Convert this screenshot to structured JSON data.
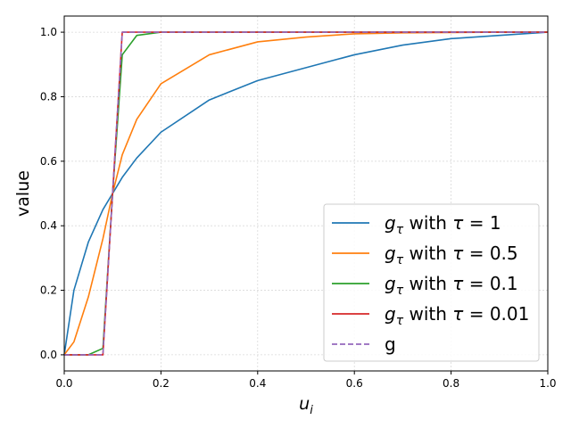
{
  "chart_data": {
    "type": "line",
    "xlabel": "u_i",
    "ylabel": "value",
    "xlim": [
      0,
      1
    ],
    "ylim": [
      -0.05,
      1.05
    ],
    "xticks": [
      0.0,
      0.2,
      0.4,
      0.6,
      0.8,
      1.0
    ],
    "xtick_labels": [
      "0.0",
      "0.2",
      "0.4",
      "0.6",
      "0.8",
      "1.0"
    ],
    "yticks": [
      0.0,
      0.2,
      0.4,
      0.6,
      0.8,
      1.0
    ],
    "ytick_labels": [
      "0.0",
      "0.2",
      "0.4",
      "0.6",
      "0.8",
      "1.0"
    ],
    "grid": true,
    "legend_position": "lower-right",
    "x": [
      0.0,
      0.02,
      0.05,
      0.08,
      0.1,
      0.12,
      0.15,
      0.2,
      0.3,
      0.4,
      0.5,
      0.6,
      0.7,
      0.8,
      0.9,
      1.0
    ],
    "series": [
      {
        "name": "g_τ with τ = 1",
        "color": "#1f77b4",
        "style": "solid",
        "values": [
          0.0,
          0.2,
          0.35,
          0.45,
          0.5,
          0.55,
          0.61,
          0.69,
          0.79,
          0.85,
          0.89,
          0.93,
          0.96,
          0.98,
          0.99,
          1.0
        ]
      },
      {
        "name": "g_τ with τ = 0.5",
        "color": "#ff7f0e",
        "style": "solid",
        "values": [
          0.0,
          0.04,
          0.18,
          0.36,
          0.5,
          0.62,
          0.73,
          0.84,
          0.93,
          0.97,
          0.985,
          0.995,
          0.998,
          0.999,
          1.0,
          1.0
        ]
      },
      {
        "name": "g_τ with τ = 0.1",
        "color": "#2ca02c",
        "style": "solid",
        "values": [
          0.0,
          0.0,
          0.0,
          0.02,
          0.5,
          0.93,
          0.99,
          1.0,
          1.0,
          1.0,
          1.0,
          1.0,
          1.0,
          1.0,
          1.0,
          1.0
        ]
      },
      {
        "name": "g_τ with τ = 0.01",
        "color": "#d62728",
        "style": "solid",
        "values": [
          0.0,
          0.0,
          0.0,
          0.0,
          0.5,
          1.0,
          1.0,
          1.0,
          1.0,
          1.0,
          1.0,
          1.0,
          1.0,
          1.0,
          1.0,
          1.0
        ]
      },
      {
        "name": "g",
        "color": "#9467bd",
        "style": "dashed",
        "values": [
          0.0,
          0.0,
          0.0,
          0.0,
          0.5,
          1.0,
          1.0,
          1.0,
          1.0,
          1.0,
          1.0,
          1.0,
          1.0,
          1.0,
          1.0,
          1.0
        ]
      }
    ],
    "legend": [
      {
        "prefix": "g",
        "sub": "τ",
        "mid": " with ",
        "tau": "τ",
        "eq": " = ",
        "val": "1"
      },
      {
        "prefix": "g",
        "sub": "τ",
        "mid": " with ",
        "tau": "τ",
        "eq": " = ",
        "val": "0.5"
      },
      {
        "prefix": "g",
        "sub": "τ",
        "mid": " with ",
        "tau": "τ",
        "eq": " = ",
        "val": "0.1"
      },
      {
        "prefix": "g",
        "sub": "τ",
        "mid": " with ",
        "tau": "τ",
        "eq": " = ",
        "val": "0.01"
      },
      {
        "label": "g"
      }
    ]
  }
}
